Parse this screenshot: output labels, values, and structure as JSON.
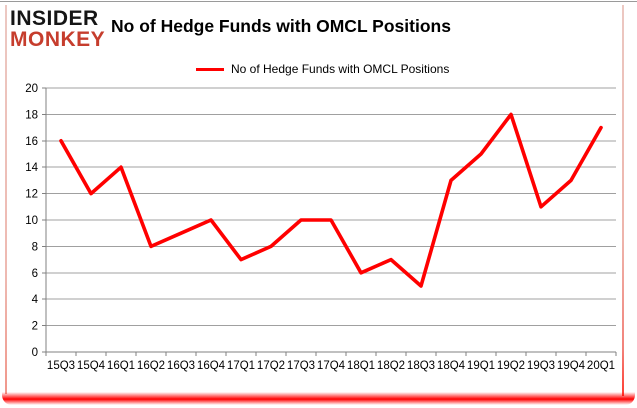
{
  "logo": {
    "line1": "INSIDER",
    "line2": "MONKEY",
    "monkey_color": "#c63d2d",
    "insider_color": "#151515"
  },
  "header": {
    "title": "No of Hedge Funds with OMCL Positions"
  },
  "legend": {
    "label": "No of Hedge Funds with OMCL Positions",
    "line_color": "#ff0000"
  },
  "chart_data": {
    "type": "line",
    "title": "No of Hedge Funds with OMCL Positions",
    "categories": [
      "15Q3",
      "15Q4",
      "16Q1",
      "16Q2",
      "16Q3",
      "16Q4",
      "17Q1",
      "17Q2",
      "17Q3",
      "17Q4",
      "18Q1",
      "18Q2",
      "18Q3",
      "18Q4",
      "19Q1",
      "19Q2",
      "19Q3",
      "19Q4",
      "20Q1"
    ],
    "series": [
      {
        "name": "No of Hedge Funds with OMCL Positions",
        "color": "#ff0000",
        "values": [
          16,
          12,
          14,
          8,
          9,
          10,
          7,
          8,
          10,
          10,
          6,
          7,
          5,
          13,
          15,
          18,
          11,
          13,
          17
        ]
      }
    ],
    "xlabel": "",
    "ylabel": "",
    "ylim": [
      0,
      20
    ],
    "ytick_step": 2,
    "grid": true,
    "grid_color": "#a0a0a0",
    "axis_color": "#808080",
    "tick_label_color": "#000000",
    "legend_position": "top"
  }
}
